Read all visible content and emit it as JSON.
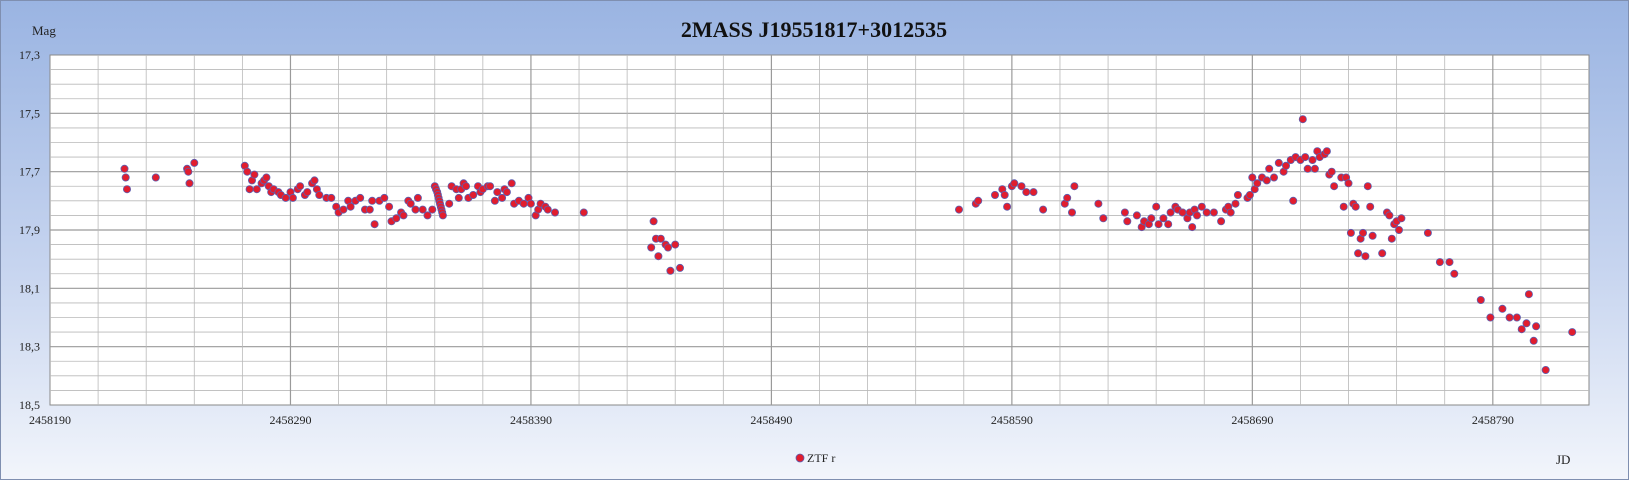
{
  "chart_data": {
    "type": "scatter",
    "title": "2MASS J19551817+3012535",
    "xlabel": "JD",
    "ylabel": "Mag",
    "xlim": [
      2458190,
      2458830
    ],
    "ylim": [
      17.3,
      18.5
    ],
    "y_inverted": true,
    "x_ticks": [
      2458190,
      2458290,
      2458390,
      2458490,
      2458590,
      2458690,
      2458790
    ],
    "x_tick_labels": [
      "2458190",
      "2458290",
      "2458390",
      "2458490",
      "2458590",
      "2458690",
      "2458790"
    ],
    "y_ticks": [
      17.3,
      17.5,
      17.7,
      17.9,
      18.1,
      18.3,
      18.5
    ],
    "y_tick_labels": [
      "17,3",
      "17,5",
      "17,7",
      "17,9",
      "18,1",
      "18,3",
      "18,5"
    ],
    "grid": true,
    "legend_position": "bottom-center",
    "colors": {
      "background_top": "#9ab4e2",
      "background_bottom": "#f2f5fb",
      "plot_bg": "#ffffff",
      "point_fill": "#e11d2e",
      "point_stroke": "#5d5fb0",
      "grid": "#b9b9b9"
    },
    "series": [
      {
        "name": "ZTF r",
        "points": [
          [
            2458221,
            17.69
          ],
          [
            2458221.5,
            17.72
          ],
          [
            2458222,
            17.76
          ],
          [
            2458234,
            17.72
          ],
          [
            2458247,
            17.69
          ],
          [
            2458247.5,
            17.7
          ],
          [
            2458248,
            17.74
          ],
          [
            2458250,
            17.67
          ],
          [
            2458271,
            17.68
          ],
          [
            2458272,
            17.7
          ],
          [
            2458273,
            17.76
          ],
          [
            2458274,
            17.73
          ],
          [
            2458275,
            17.71
          ],
          [
            2458276,
            17.76
          ],
          [
            2458278,
            17.74
          ],
          [
            2458279,
            17.73
          ],
          [
            2458280,
            17.72
          ],
          [
            2458281,
            17.75
          ],
          [
            2458282,
            17.77
          ],
          [
            2458283,
            17.76
          ],
          [
            2458285,
            17.77
          ],
          [
            2458286,
            17.78
          ],
          [
            2458288,
            17.79
          ],
          [
            2458290,
            17.77
          ],
          [
            2458291,
            17.79
          ],
          [
            2458293,
            17.76
          ],
          [
            2458294,
            17.75
          ],
          [
            2458296,
            17.78
          ],
          [
            2458297,
            17.77
          ],
          [
            2458299,
            17.74
          ],
          [
            2458300,
            17.73
          ],
          [
            2458301,
            17.76
          ],
          [
            2458302,
            17.78
          ],
          [
            2458305,
            17.79
          ],
          [
            2458307,
            17.79
          ],
          [
            2458309,
            17.82
          ],
          [
            2458310,
            17.84
          ],
          [
            2458312,
            17.83
          ],
          [
            2458314,
            17.8
          ],
          [
            2458315,
            17.82
          ],
          [
            2458317,
            17.8
          ],
          [
            2458319,
            17.79
          ],
          [
            2458321,
            17.83
          ],
          [
            2458323,
            17.83
          ],
          [
            2458324,
            17.8
          ],
          [
            2458325,
            17.88
          ],
          [
            2458327,
            17.8
          ],
          [
            2458329,
            17.79
          ],
          [
            2458331,
            17.82
          ],
          [
            2458332,
            17.87
          ],
          [
            2458334,
            17.86
          ],
          [
            2458336,
            17.84
          ],
          [
            2458337,
            17.85
          ],
          [
            2458339,
            17.8
          ],
          [
            2458340,
            17.81
          ],
          [
            2458342,
            17.83
          ],
          [
            2458343,
            17.79
          ],
          [
            2458345,
            17.83
          ],
          [
            2458347,
            17.85
          ],
          [
            2458349,
            17.83
          ],
          [
            2458350,
            17.75
          ],
          [
            2458350.5,
            17.76
          ],
          [
            2458351,
            17.77
          ],
          [
            2458351.3,
            17.78
          ],
          [
            2458351.6,
            17.79
          ],
          [
            2458351.9,
            17.8
          ],
          [
            2458352.2,
            17.81
          ],
          [
            2458352.5,
            17.82
          ],
          [
            2458352.8,
            17.83
          ],
          [
            2458353.1,
            17.84
          ],
          [
            2458353.4,
            17.85
          ],
          [
            2458356,
            17.81
          ],
          [
            2458357,
            17.75
          ],
          [
            2458359,
            17.76
          ],
          [
            2458360,
            17.79
          ],
          [
            2458361,
            17.76
          ],
          [
            2458362,
            17.74
          ],
          [
            2458363,
            17.75
          ],
          [
            2458364,
            17.79
          ],
          [
            2458366,
            17.78
          ],
          [
            2458368,
            17.75
          ],
          [
            2458369,
            17.77
          ],
          [
            2458370,
            17.76
          ],
          [
            2458372,
            17.75
          ],
          [
            2458373,
            17.75
          ],
          [
            2458375,
            17.8
          ],
          [
            2458376,
            17.77
          ],
          [
            2458378,
            17.79
          ],
          [
            2458379,
            17.76
          ],
          [
            2458380,
            17.77
          ],
          [
            2458382,
            17.74
          ],
          [
            2458383,
            17.81
          ],
          [
            2458385,
            17.8
          ],
          [
            2458387,
            17.81
          ],
          [
            2458389,
            17.79
          ],
          [
            2458390,
            17.81
          ],
          [
            2458392,
            17.85
          ],
          [
            2458393,
            17.83
          ],
          [
            2458394,
            17.81
          ],
          [
            2458396,
            17.82
          ],
          [
            2458397,
            17.83
          ],
          [
            2458400,
            17.84
          ],
          [
            2458412,
            17.84
          ],
          [
            2458440,
            17.96
          ],
          [
            2458441,
            17.87
          ],
          [
            2458442,
            17.93
          ],
          [
            2458443,
            17.99
          ],
          [
            2458444,
            17.93
          ],
          [
            2458446,
            17.95
          ],
          [
            2458447,
            17.96
          ],
          [
            2458448,
            18.04
          ],
          [
            2458450,
            17.95
          ],
          [
            2458452,
            18.03
          ],
          [
            2458568,
            17.83
          ],
          [
            2458575,
            17.81
          ],
          [
            2458576,
            17.8
          ],
          [
            2458583,
            17.78
          ],
          [
            2458586,
            17.76
          ],
          [
            2458587,
            17.78
          ],
          [
            2458588,
            17.82
          ],
          [
            2458590,
            17.75
          ],
          [
            2458591,
            17.74
          ],
          [
            2458594,
            17.75
          ],
          [
            2458596,
            17.77
          ],
          [
            2458599,
            17.77
          ],
          [
            2458603,
            17.83
          ],
          [
            2458612,
            17.81
          ],
          [
            2458613,
            17.79
          ],
          [
            2458615,
            17.84
          ],
          [
            2458616,
            17.75
          ],
          [
            2458626,
            17.81
          ],
          [
            2458628,
            17.86
          ],
          [
            2458637,
            17.84
          ],
          [
            2458638,
            17.87
          ],
          [
            2458642,
            17.85
          ],
          [
            2458644,
            17.89
          ],
          [
            2458645,
            17.87
          ],
          [
            2458647,
            17.88
          ],
          [
            2458648,
            17.86
          ],
          [
            2458650,
            17.82
          ],
          [
            2458651,
            17.88
          ],
          [
            2458653,
            17.86
          ],
          [
            2458655,
            17.88
          ],
          [
            2458656,
            17.84
          ],
          [
            2458658,
            17.82
          ],
          [
            2458659,
            17.83
          ],
          [
            2458661,
            17.84
          ],
          [
            2458663,
            17.86
          ],
          [
            2458664,
            17.84
          ],
          [
            2458665,
            17.89
          ],
          [
            2458666,
            17.83
          ],
          [
            2458667,
            17.85
          ],
          [
            2458669,
            17.82
          ],
          [
            2458671,
            17.84
          ],
          [
            2458674,
            17.84
          ],
          [
            2458677,
            17.87
          ],
          [
            2458679,
            17.83
          ],
          [
            2458680,
            17.82
          ],
          [
            2458681,
            17.84
          ],
          [
            2458683,
            17.81
          ],
          [
            2458684,
            17.78
          ],
          [
            2458688,
            17.79
          ],
          [
            2458689,
            17.78
          ],
          [
            2458690,
            17.72
          ],
          [
            2458691,
            17.76
          ],
          [
            2458692,
            17.74
          ],
          [
            2458694,
            17.72
          ],
          [
            2458696,
            17.73
          ],
          [
            2458697,
            17.69
          ],
          [
            2458699,
            17.72
          ],
          [
            2458701,
            17.67
          ],
          [
            2458703,
            17.7
          ],
          [
            2458704,
            17.68
          ],
          [
            2458706,
            17.66
          ],
          [
            2458707,
            17.8
          ],
          [
            2458708,
            17.65
          ],
          [
            2458710,
            17.66
          ],
          [
            2458711,
            17.52
          ],
          [
            2458712,
            17.65
          ],
          [
            2458713,
            17.69
          ],
          [
            2458715,
            17.66
          ],
          [
            2458716,
            17.69
          ],
          [
            2458717,
            17.63
          ],
          [
            2458718,
            17.65
          ],
          [
            2458720,
            17.64
          ],
          [
            2458721,
            17.63
          ],
          [
            2458722,
            17.71
          ],
          [
            2458723,
            17.7
          ],
          [
            2458724,
            17.75
          ],
          [
            2458727,
            17.72
          ],
          [
            2458728,
            17.82
          ],
          [
            2458729,
            17.72
          ],
          [
            2458730,
            17.74
          ],
          [
            2458731,
            17.91
          ],
          [
            2458732,
            17.81
          ],
          [
            2458733,
            17.82
          ],
          [
            2458734,
            17.98
          ],
          [
            2458735,
            17.93
          ],
          [
            2458736,
            17.91
          ],
          [
            2458737,
            17.99
          ],
          [
            2458738,
            17.75
          ],
          [
            2458739,
            17.82
          ],
          [
            2458740,
            17.92
          ],
          [
            2458744,
            17.98
          ],
          [
            2458746,
            17.84
          ],
          [
            2458747,
            17.85
          ],
          [
            2458748,
            17.93
          ],
          [
            2458749,
            17.88
          ],
          [
            2458750,
            17.87
          ],
          [
            2458751,
            17.9
          ],
          [
            2458752,
            17.86
          ],
          [
            2458763,
            17.91
          ],
          [
            2458768,
            18.01
          ],
          [
            2458772,
            18.01
          ],
          [
            2458774,
            18.05
          ],
          [
            2458785,
            18.14
          ],
          [
            2458789,
            18.2
          ],
          [
            2458794,
            18.17
          ],
          [
            2458797,
            18.2
          ],
          [
            2458800,
            18.2
          ],
          [
            2458802,
            18.24
          ],
          [
            2458804,
            18.22
          ],
          [
            2458805,
            18.12
          ],
          [
            2458807,
            18.28
          ],
          [
            2458808,
            18.23
          ],
          [
            2458812,
            18.38
          ],
          [
            2458823,
            18.25
          ]
        ]
      }
    ]
  }
}
